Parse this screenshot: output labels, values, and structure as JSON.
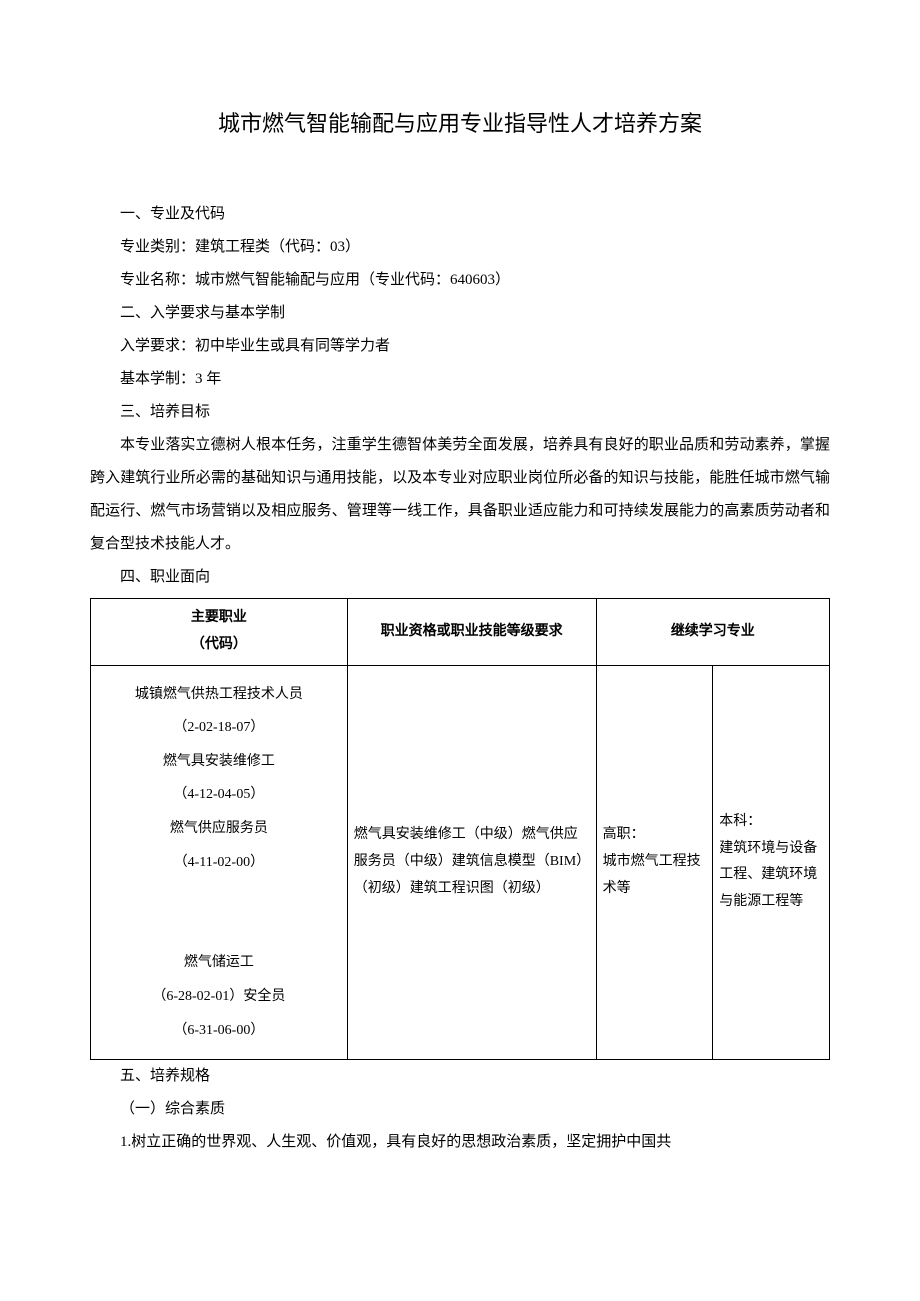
{
  "title": "城市燃气智能输配与应用专业指导性人才培养方案",
  "section1": {
    "label": "一、专业及代码",
    "line1": "专业类别：建筑工程类（代码：03）",
    "line2": "专业名称：城市燃气智能输配与应用（专业代码：640603）"
  },
  "section2": {
    "label": "二、入学要求与基本学制",
    "line1": "入学要求：初中毕业生或具有同等学力者",
    "line2": "基本学制：3 年"
  },
  "section3": {
    "label": "三、培养目标",
    "paragraph": "本专业落实立德树人根本任务，注重学生德智体美劳全面发展，培养具有良好的职业品质和劳动素养，掌握跨入建筑行业所必需的基础知识与通用技能，以及本专业对应职业岗位所必备的知识与技能，能胜任城市燃气输配运行、燃气市场营销以及相应服务、管理等一线工作，具备职业适应能力和可持续发展能力的高素质劳动者和复合型技术技能人才。"
  },
  "section4": {
    "label": "四、职业面向",
    "table": {
      "headers": {
        "col1": "主要职业\n（代码）",
        "col2": "职业资格或职业技能等级要求",
        "col3": "继续学习专业"
      },
      "row": {
        "occupations": "城镇燃气供热工程技术人员\n（2-02-18-07）\n燃气具安装维修工\n（4-12-04-05）\n燃气供应服务员\n（4-11-02-00）\n\n燃气储运工\n（6-28-02-01）安全员\n（6-31-06-00）",
        "requirements": "燃气具安装维修工（中级）燃气供应服务员（中级）建筑信息模型（BIM）（初级）建筑工程识图（初级）",
        "further1": "高职：\n城市燃气工程技术等",
        "further2": "本科：\n建筑环境与设备工程、建筑环境与能源工程等"
      }
    }
  },
  "section5": {
    "label": "五、培养规格",
    "sub1": "（一）综合素质",
    "item1": "1.树立正确的世界观、人生观、价值观，具有良好的思想政治素质，坚定拥护中国共"
  },
  "colors": {
    "text": "#000000",
    "background": "#ffffff",
    "border": "#000000"
  },
  "fonts": {
    "title_size": 22,
    "body_size": 15,
    "table_size": 14
  }
}
